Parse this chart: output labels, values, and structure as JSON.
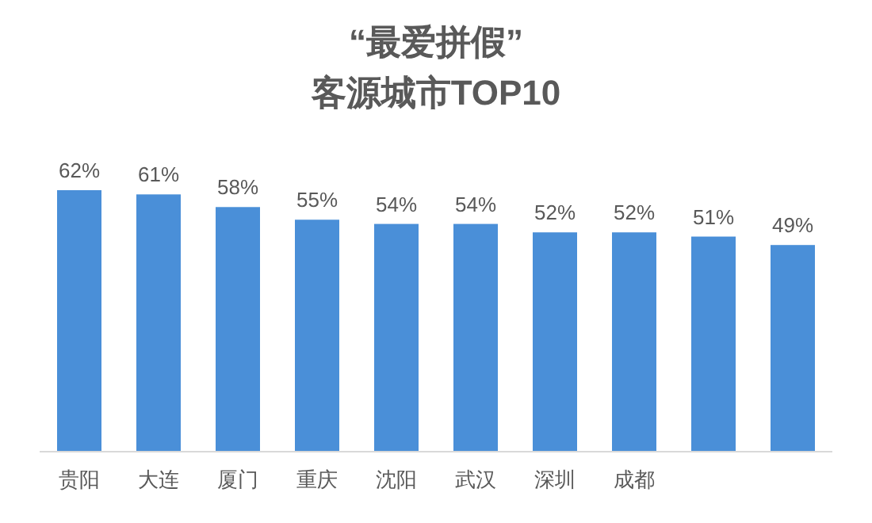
{
  "chart_data": {
    "type": "bar",
    "title": "“最爱拼假”",
    "subtitle": "客源城市TOP10",
    "categories": [
      "贵阳",
      "大连",
      "厦门",
      "重庆",
      "沈阳",
      "武汉",
      "深圳",
      "成都",
      null,
      null
    ],
    "values": [
      62,
      61,
      58,
      55,
      54,
      54,
      52,
      52,
      51,
      49
    ],
    "value_labels": [
      "62%",
      "61%",
      "58%",
      "55%",
      "54%",
      "54%",
      "52%",
      "52%",
      "51%",
      "49%"
    ],
    "color": "#4a8fd8"
  }
}
